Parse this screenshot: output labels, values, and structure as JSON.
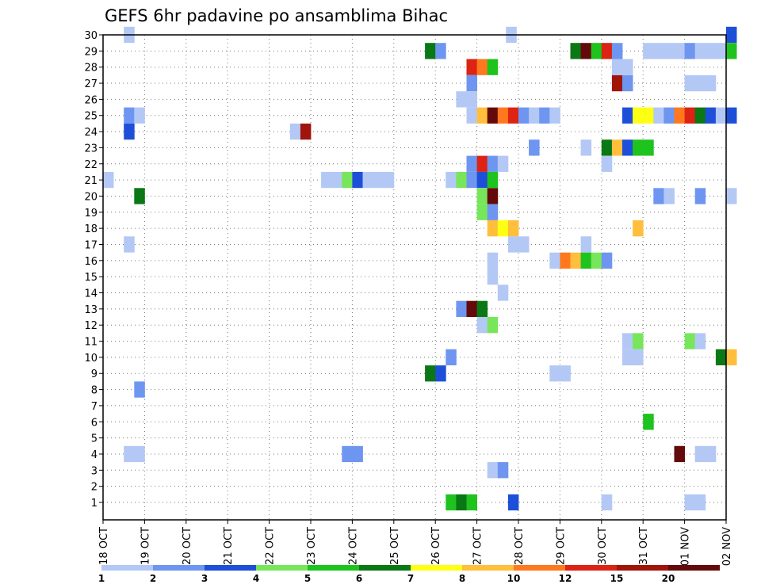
{
  "chart_data": {
    "type": "heatmap",
    "title": "GEFS 6hr padavine po ansamblima Bihac",
    "y_members": [
      1,
      2,
      3,
      4,
      5,
      6,
      7,
      8,
      9,
      10,
      11,
      12,
      13,
      14,
      15,
      16,
      17,
      18,
      19,
      20,
      21,
      22,
      23,
      24,
      25,
      26,
      27,
      28,
      29,
      30
    ],
    "x_tick_labels": [
      "18 OCT",
      "19 OCT",
      "20 OCT",
      "21 OCT",
      "22 OCT",
      "23 OCT",
      "24 OCT",
      "25 OCT",
      "26 OCT",
      "27 OCT",
      "28 OCT",
      "29 OCT",
      "30 OCT",
      "31 OCT",
      "01 NOV",
      "02 NOV"
    ],
    "x_range_days": [
      0,
      15
    ],
    "grid": true,
    "colorbar": {
      "labels": [
        "1",
        "2",
        "3",
        "4",
        "5",
        "6",
        "7",
        "8",
        "10",
        "12",
        "15",
        "20"
      ],
      "colors": [
        "#b4c8f5",
        "#6e96f0",
        "#1e4fd8",
        "#78e65a",
        "#1ec31e",
        "#0a7814",
        "#ffff14",
        "#ffbe3c",
        "#ff781e",
        "#dc2314",
        "#a0140a",
        "#640a0a"
      ]
    },
    "cells": [
      {
        "m": 30,
        "d": 0.5,
        "c": 0
      },
      {
        "m": 30,
        "d": 9.7,
        "c": 0
      },
      {
        "m": 30,
        "d": 15.0,
        "c": 2
      },
      {
        "m": 29,
        "d": 7.75,
        "c": 5
      },
      {
        "m": 29,
        "d": 8.0,
        "c": 1
      },
      {
        "m": 29,
        "d": 11.25,
        "c": 5
      },
      {
        "m": 29,
        "d": 11.5,
        "c": 11
      },
      {
        "m": 29,
        "d": 11.75,
        "c": 4
      },
      {
        "m": 29,
        "d": 12.0,
        "c": 9
      },
      {
        "m": 29,
        "d": 12.25,
        "c": 1
      },
      {
        "m": 29,
        "d": 13.0,
        "c": 0
      },
      {
        "m": 29,
        "d": 13.25,
        "c": 0
      },
      {
        "m": 29,
        "d": 13.5,
        "c": 0
      },
      {
        "m": 29,
        "d": 13.75,
        "c": 0
      },
      {
        "m": 29,
        "d": 14.0,
        "c": 1
      },
      {
        "m": 29,
        "d": 14.25,
        "c": 0
      },
      {
        "m": 29,
        "d": 14.5,
        "c": 0
      },
      {
        "m": 29,
        "d": 14.75,
        "c": 0
      },
      {
        "m": 29,
        "d": 15.0,
        "c": 4
      },
      {
        "m": 28,
        "d": 8.75,
        "c": 9
      },
      {
        "m": 28,
        "d": 9.0,
        "c": 8
      },
      {
        "m": 28,
        "d": 9.25,
        "c": 4
      },
      {
        "m": 28,
        "d": 12.25,
        "c": 0
      },
      {
        "m": 28,
        "d": 12.5,
        "c": 0
      },
      {
        "m": 27,
        "d": 8.75,
        "c": 1
      },
      {
        "m": 27,
        "d": 12.25,
        "c": 10
      },
      {
        "m": 27,
        "d": 12.5,
        "c": 1
      },
      {
        "m": 27,
        "d": 14.0,
        "c": 0
      },
      {
        "m": 27,
        "d": 14.25,
        "c": 0
      },
      {
        "m": 27,
        "d": 14.5,
        "c": 0
      },
      {
        "m": 26,
        "d": 8.5,
        "c": 0
      },
      {
        "m": 26,
        "d": 8.75,
        "c": 0
      },
      {
        "m": 25,
        "d": 0.5,
        "c": 1
      },
      {
        "m": 25,
        "d": 0.75,
        "c": 0
      },
      {
        "m": 25,
        "d": 8.75,
        "c": 0
      },
      {
        "m": 25,
        "d": 9.0,
        "c": 7
      },
      {
        "m": 25,
        "d": 9.25,
        "c": 11
      },
      {
        "m": 25,
        "d": 9.5,
        "c": 8
      },
      {
        "m": 25,
        "d": 9.75,
        "c": 9
      },
      {
        "m": 25,
        "d": 10.0,
        "c": 1
      },
      {
        "m": 25,
        "d": 10.25,
        "c": 0
      },
      {
        "m": 25,
        "d": 10.5,
        "c": 1
      },
      {
        "m": 25,
        "d": 10.75,
        "c": 0
      },
      {
        "m": 25,
        "d": 12.5,
        "c": 2
      },
      {
        "m": 25,
        "d": 12.75,
        "c": 6
      },
      {
        "m": 25,
        "d": 13.0,
        "c": 6
      },
      {
        "m": 25,
        "d": 13.25,
        "c": 0
      },
      {
        "m": 25,
        "d": 13.5,
        "c": 1
      },
      {
        "m": 25,
        "d": 13.75,
        "c": 8
      },
      {
        "m": 25,
        "d": 14.0,
        "c": 9
      },
      {
        "m": 25,
        "d": 14.25,
        "c": 5
      },
      {
        "m": 25,
        "d": 14.5,
        "c": 2
      },
      {
        "m": 25,
        "d": 14.75,
        "c": 0
      },
      {
        "m": 25,
        "d": 15.0,
        "c": 2
      },
      {
        "m": 24,
        "d": 0.5,
        "c": 2
      },
      {
        "m": 24,
        "d": 4.5,
        "c": 0
      },
      {
        "m": 24,
        "d": 4.75,
        "c": 10
      },
      {
        "m": 23,
        "d": 10.25,
        "c": 1
      },
      {
        "m": 23,
        "d": 11.5,
        "c": 0
      },
      {
        "m": 23,
        "d": 12.0,
        "c": 5
      },
      {
        "m": 23,
        "d": 12.25,
        "c": 7
      },
      {
        "m": 23,
        "d": 12.5,
        "c": 2
      },
      {
        "m": 23,
        "d": 12.75,
        "c": 4
      },
      {
        "m": 23,
        "d": 13.0,
        "c": 4
      },
      {
        "m": 22,
        "d": 8.75,
        "c": 1
      },
      {
        "m": 22,
        "d": 9.0,
        "c": 9
      },
      {
        "m": 22,
        "d": 9.25,
        "c": 1
      },
      {
        "m": 22,
        "d": 9.5,
        "c": 0
      },
      {
        "m": 22,
        "d": 12.0,
        "c": 0
      },
      {
        "m": 21,
        "d": 0.0,
        "c": 0
      },
      {
        "m": 21,
        "d": 5.25,
        "c": 0
      },
      {
        "m": 21,
        "d": 5.5,
        "c": 0
      },
      {
        "m": 21,
        "d": 5.75,
        "c": 3
      },
      {
        "m": 21,
        "d": 6.0,
        "c": 2
      },
      {
        "m": 21,
        "d": 6.25,
        "c": 0
      },
      {
        "m": 21,
        "d": 6.5,
        "c": 0
      },
      {
        "m": 21,
        "d": 6.75,
        "c": 0
      },
      {
        "m": 21,
        "d": 8.25,
        "c": 0
      },
      {
        "m": 21,
        "d": 8.5,
        "c": 3
      },
      {
        "m": 21,
        "d": 8.75,
        "c": 1
      },
      {
        "m": 21,
        "d": 9.0,
        "c": 2
      },
      {
        "m": 21,
        "d": 9.25,
        "c": 4
      },
      {
        "m": 20,
        "d": 0.75,
        "c": 5
      },
      {
        "m": 20,
        "d": 9.0,
        "c": 3
      },
      {
        "m": 20,
        "d": 9.25,
        "c": 11
      },
      {
        "m": 20,
        "d": 13.25,
        "c": 1
      },
      {
        "m": 20,
        "d": 13.5,
        "c": 0
      },
      {
        "m": 20,
        "d": 14.25,
        "c": 1
      },
      {
        "m": 20,
        "d": 15.0,
        "c": 0
      },
      {
        "m": 19,
        "d": 9.0,
        "c": 3
      },
      {
        "m": 19,
        "d": 9.25,
        "c": 1
      },
      {
        "m": 18,
        "d": 9.25,
        "c": 7
      },
      {
        "m": 18,
        "d": 9.5,
        "c": 6
      },
      {
        "m": 18,
        "d": 9.75,
        "c": 7
      },
      {
        "m": 18,
        "d": 12.75,
        "c": 7
      },
      {
        "m": 17,
        "d": 0.5,
        "c": 0
      },
      {
        "m": 17,
        "d": 9.75,
        "c": 0
      },
      {
        "m": 17,
        "d": 10.0,
        "c": 0
      },
      {
        "m": 17,
        "d": 11.5,
        "c": 0
      },
      {
        "m": 16,
        "d": 9.25,
        "c": 0
      },
      {
        "m": 16,
        "d": 10.75,
        "c": 0
      },
      {
        "m": 16,
        "d": 11.0,
        "c": 8
      },
      {
        "m": 16,
        "d": 11.25,
        "c": 7
      },
      {
        "m": 16,
        "d": 11.5,
        "c": 4
      },
      {
        "m": 16,
        "d": 11.75,
        "c": 3
      },
      {
        "m": 16,
        "d": 12.0,
        "c": 1
      },
      {
        "m": 15,
        "d": 9.25,
        "c": 0
      },
      {
        "m": 14,
        "d": 9.5,
        "c": 0
      },
      {
        "m": 13,
        "d": 8.5,
        "c": 1
      },
      {
        "m": 13,
        "d": 8.75,
        "c": 11
      },
      {
        "m": 13,
        "d": 9.0,
        "c": 5
      },
      {
        "m": 12,
        "d": 9.0,
        "c": 0
      },
      {
        "m": 12,
        "d": 9.25,
        "c": 3
      },
      {
        "m": 11,
        "d": 12.5,
        "c": 0
      },
      {
        "m": 11,
        "d": 12.75,
        "c": 3
      },
      {
        "m": 11,
        "d": 14.0,
        "c": 3
      },
      {
        "m": 11,
        "d": 14.25,
        "c": 0
      },
      {
        "m": 10,
        "d": 8.25,
        "c": 1
      },
      {
        "m": 10,
        "d": 12.5,
        "c": 0
      },
      {
        "m": 10,
        "d": 12.75,
        "c": 0
      },
      {
        "m": 10,
        "d": 14.75,
        "c": 5
      },
      {
        "m": 10,
        "d": 15.0,
        "c": 7
      },
      {
        "m": 9,
        "d": 7.75,
        "c": 5
      },
      {
        "m": 9,
        "d": 8.0,
        "c": 2
      },
      {
        "m": 9,
        "d": 10.75,
        "c": 0
      },
      {
        "m": 9,
        "d": 11.0,
        "c": 0
      },
      {
        "m": 8,
        "d": 0.75,
        "c": 1
      },
      {
        "m": 6,
        "d": 13.0,
        "c": 4
      },
      {
        "m": 4,
        "d": 0.5,
        "c": 0
      },
      {
        "m": 4,
        "d": 0.75,
        "c": 0
      },
      {
        "m": 4,
        "d": 5.75,
        "c": 1
      },
      {
        "m": 4,
        "d": 6.0,
        "c": 1
      },
      {
        "m": 4,
        "d": 13.75,
        "c": 11
      },
      {
        "m": 4,
        "d": 14.25,
        "c": 0
      },
      {
        "m": 4,
        "d": 14.5,
        "c": 0
      },
      {
        "m": 3,
        "d": 9.25,
        "c": 0
      },
      {
        "m": 3,
        "d": 9.5,
        "c": 1
      },
      {
        "m": 1,
        "d": 8.25,
        "c": 4
      },
      {
        "m": 1,
        "d": 8.5,
        "c": 5
      },
      {
        "m": 1,
        "d": 8.75,
        "c": 4
      },
      {
        "m": 1,
        "d": 9.75,
        "c": 2
      },
      {
        "m": 1,
        "d": 12.0,
        "c": 0
      },
      {
        "m": 1,
        "d": 14.0,
        "c": 0
      },
      {
        "m": 1,
        "d": 14.25,
        "c": 0
      }
    ]
  }
}
